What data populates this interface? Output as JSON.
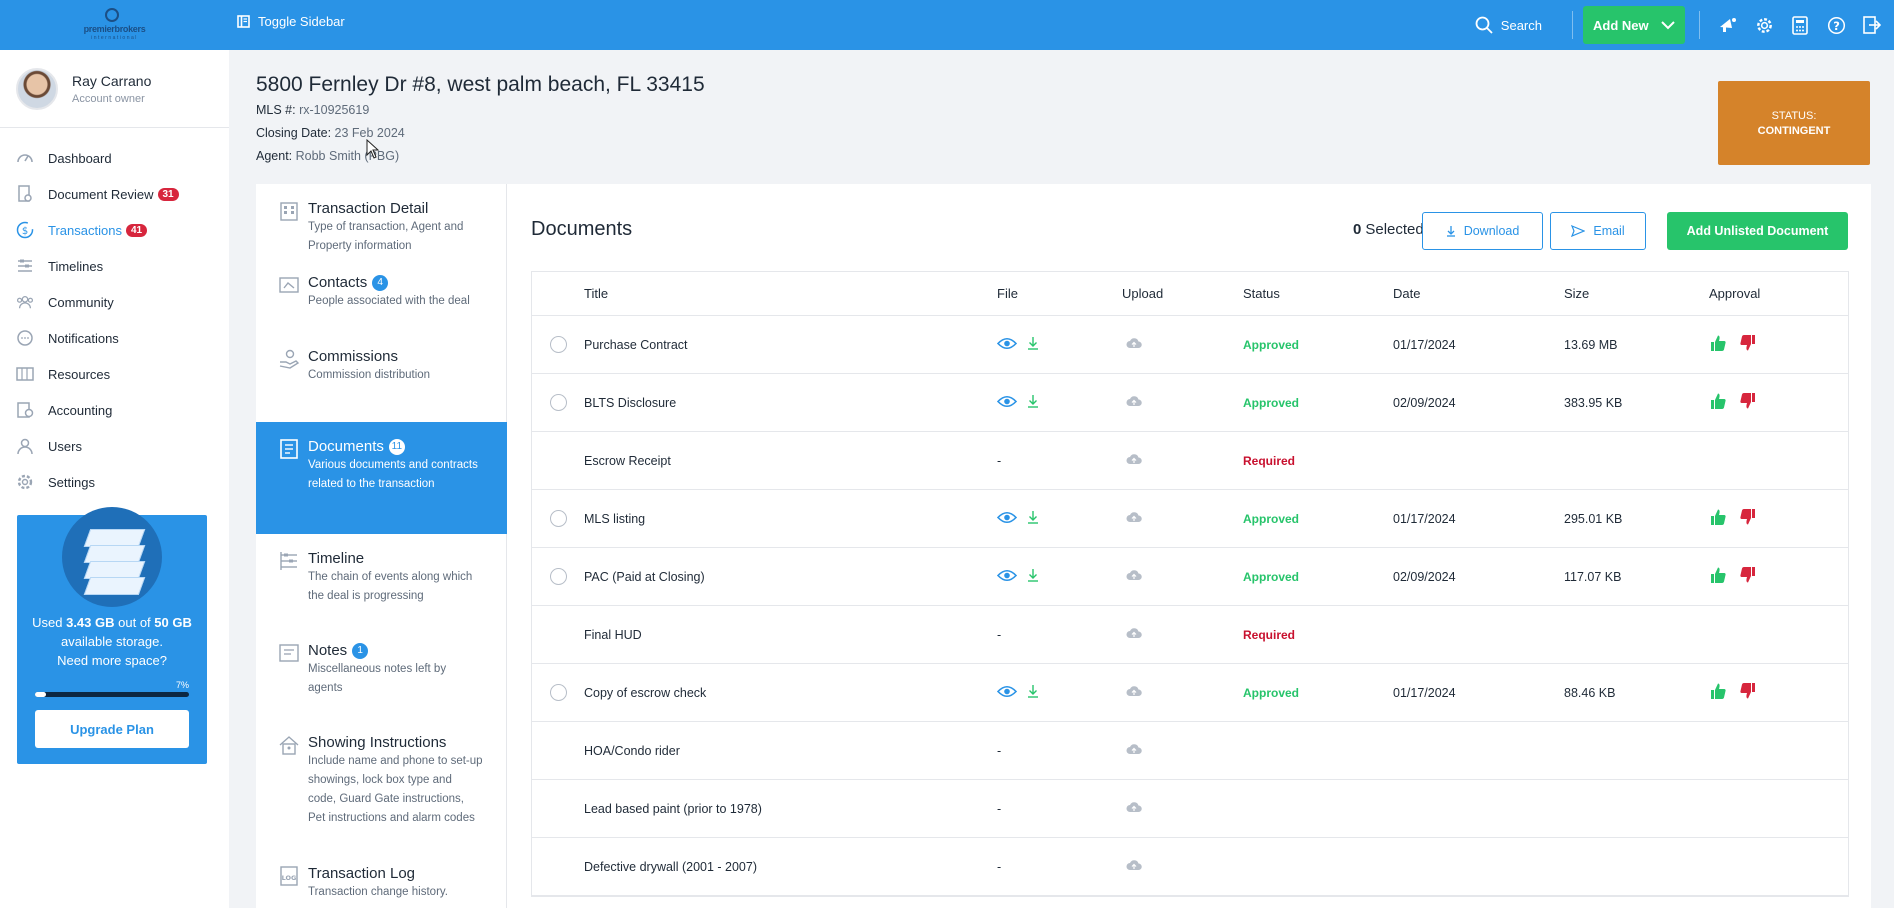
{
  "topbar": {
    "logo_text": "premierbrokers",
    "logo_sub": "international",
    "toggle_label": "Toggle Sidebar",
    "search_label": "Search",
    "add_new_label": "Add New",
    "icons": [
      "megaphone-icon",
      "gear-icon",
      "calculator-icon",
      "help-icon",
      "logout-icon"
    ]
  },
  "user": {
    "name": "Ray Carrano",
    "role": "Account owner"
  },
  "sidebar": {
    "items": [
      {
        "label": "Dashboard",
        "icon": "dashboard-icon",
        "badge": ""
      },
      {
        "label": "Document Review",
        "icon": "document-review-icon",
        "badge": "31"
      },
      {
        "label": "Transactions",
        "icon": "dollar-icon",
        "badge": "41",
        "active": true
      },
      {
        "label": "Timelines",
        "icon": "timeline-icon",
        "badge": ""
      },
      {
        "label": "Community",
        "icon": "community-icon",
        "badge": ""
      },
      {
        "label": "Notifications",
        "icon": "chat-icon",
        "badge": ""
      },
      {
        "label": "Resources",
        "icon": "folder-icon",
        "badge": ""
      },
      {
        "label": "Accounting",
        "icon": "accounting-icon",
        "badge": ""
      },
      {
        "label": "Users",
        "icon": "user-icon",
        "badge": ""
      },
      {
        "label": "Settings",
        "icon": "gear-icon",
        "badge": ""
      }
    ]
  },
  "storage": {
    "used_prefix": "Used",
    "used": "3.43 GB",
    "out_of": "out of",
    "total": "50 GB",
    "suffix": "available storage.",
    "need_more": "Need more space?",
    "percent_label": "7%",
    "percent": 7,
    "upgrade_label": "Upgrade Plan"
  },
  "property": {
    "address": "5800 Fernley Dr #8, west palm beach, FL 33415",
    "mls_label": "MLS #:",
    "mls_value": "rx-10925619",
    "closing_label": "Closing Date:",
    "closing_value": "23 Feb 2024",
    "agent_label": "Agent:",
    "agent_value": "Robb Smith (PBG)",
    "status_label": "STATUS:",
    "status_value": "CONTINGENT",
    "status_color": "#d5832a"
  },
  "tabs": [
    {
      "title": "Transaction Detail",
      "desc": "Type of transaction, Agent and Property information",
      "icon": "building-icon",
      "badge": ""
    },
    {
      "title": "Contacts",
      "desc": "People associated with the deal",
      "icon": "contacts-icon",
      "badge": "4"
    },
    {
      "title": "Commissions",
      "desc": "Commission distribution",
      "icon": "hand-coin-icon",
      "badge": ""
    },
    {
      "title": "Documents",
      "desc": "Various documents and contracts related to the transaction",
      "icon": "documents-icon",
      "badge": "11",
      "active": true
    },
    {
      "title": "Timeline",
      "desc": "The chain of events along which the deal is progressing",
      "icon": "timeline-icon",
      "badge": ""
    },
    {
      "title": "Notes",
      "desc": "Miscellaneous notes left by agents",
      "icon": "notes-icon",
      "badge": "1"
    },
    {
      "title": "Showing Instructions",
      "desc": "Include name and phone to set-up showings, lock box type and code, Guard Gate instructions, Pet instructions and alarm codes",
      "icon": "house-icon",
      "badge": ""
    },
    {
      "title": "Transaction Log",
      "desc": "Transaction change history.",
      "icon": "log-icon",
      "badge": ""
    }
  ],
  "documents": {
    "title": "Documents",
    "selected_count": "0",
    "selected_label": "Selected",
    "download_label": "Download",
    "email_label": "Email",
    "add_unlisted_label": "Add Unlisted Document",
    "columns": [
      "Title",
      "File",
      "Upload",
      "Status",
      "Date",
      "Size",
      "Approval"
    ],
    "rows": [
      {
        "title": "Purchase Contract",
        "file": "",
        "status": "Approved",
        "date": "01/17/2024",
        "size": "13.69 MB",
        "has_file": true
      },
      {
        "title": "BLTS Disclosure",
        "file": "",
        "status": "Approved",
        "date": "02/09/2024",
        "size": "383.95 KB",
        "has_file": true
      },
      {
        "title": "Escrow Receipt",
        "file": "-",
        "status": "Required",
        "date": "",
        "size": "",
        "has_file": false
      },
      {
        "title": "MLS listing",
        "file": "",
        "status": "Approved",
        "date": "01/17/2024",
        "size": "295.01 KB",
        "has_file": true
      },
      {
        "title": "PAC (Paid at Closing)",
        "file": "",
        "status": "Approved",
        "date": "02/09/2024",
        "size": "117.07 KB",
        "has_file": true
      },
      {
        "title": "Final HUD",
        "file": "-",
        "status": "Required",
        "date": "",
        "size": "",
        "has_file": false
      },
      {
        "title": "Copy of escrow check",
        "file": "",
        "status": "Approved",
        "date": "01/17/2024",
        "size": "88.46 KB",
        "has_file": true
      },
      {
        "title": "HOA/Condo rider",
        "file": "-",
        "status": "",
        "date": "",
        "size": "",
        "has_file": false
      },
      {
        "title": "Lead based paint (prior to 1978)",
        "file": "-",
        "status": "",
        "date": "",
        "size": "",
        "has_file": false
      },
      {
        "title": "Defective drywall (2001 - 2007)",
        "file": "-",
        "status": "",
        "date": "",
        "size": "",
        "has_file": false
      }
    ]
  },
  "colors": {
    "primary": "#2a93e6",
    "green": "#27c46b",
    "red": "#c8102e",
    "orange": "#d5832a"
  }
}
